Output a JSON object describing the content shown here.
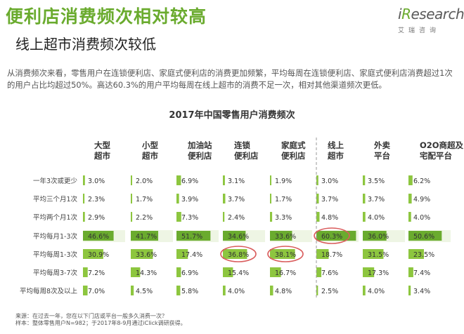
{
  "header": {
    "title": "便利店消费频次相对较高",
    "subtitle": "线上超市消费频次较低",
    "logo_text": "iResearch",
    "logo_sub": "艾瑞咨询",
    "description": "从消费频次来看，零售用户在连锁便利店、家庭式便利店的消费更加频繁，平均每周在连锁便利店、家庭式便利店消费超过1次的用户占比均超过50%。高达60.3%的用户平均每周在线上超市的消费不足一次，相对其他渠道频次更低。"
  },
  "footnote": {
    "line1": "来源：在过去一年，您在以下门店或平台一般多久消费一次？",
    "line2": "样本：整体零售用户N=982；于2017年8-9月通过iClick调研获得。"
  },
  "colors": {
    "accent": "#6aab2e",
    "bar": "#8dc63f",
    "highlight_bar": "#6aab2e",
    "circle": "#d95c5c",
    "divider": "#999999"
  },
  "chart_data": {
    "type": "table",
    "title": "2017年中国零售用户消费频次",
    "columns": [
      [
        "大型",
        "超市"
      ],
      [
        "小型",
        "超市"
      ],
      [
        "加油站",
        "便利店"
      ],
      [
        "连锁",
        "便利店"
      ],
      [
        "家庭式",
        "便利店"
      ],
      [
        "线上",
        "超市"
      ],
      [
        "外卖",
        "平台"
      ],
      [
        "O2O商超及",
        "宅配平台"
      ]
    ],
    "rows": [
      "一年3次或更少",
      "平均三个月1次",
      "平均两个月1次",
      "平均每月1-3次",
      "平均每周1-3次",
      "平均每周3-7次",
      "平均每周8次及以上"
    ],
    "values": [
      [
        3.0,
        2.0,
        6.9,
        3.1,
        1.9,
        3.0,
        3.5,
        6.2
      ],
      [
        2.3,
        1.7,
        3.9,
        3.7,
        1.7,
        3.7,
        3.7,
        4.9
      ],
      [
        2.9,
        2.2,
        7.3,
        2.4,
        3.3,
        4.8,
        4.0,
        4.0
      ],
      [
        46.6,
        41.7,
        51.7,
        34.6,
        33.6,
        60.3,
        36.0,
        50.6
      ],
      [
        30.9,
        33.6,
        17.4,
        36.8,
        38.1,
        18.7,
        31.5,
        23.5
      ],
      [
        7.2,
        14.3,
        6.9,
        15.4,
        16.7,
        7.6,
        17.3,
        7.4
      ],
      [
        7.0,
        4.5,
        5.8,
        4.0,
        4.8,
        2.5,
        4.0,
        3.4
      ]
    ],
    "unit": "%",
    "highlight_row": 3,
    "circled_cells": [
      [
        3,
        5
      ],
      [
        4,
        3
      ],
      [
        4,
        4
      ]
    ],
    "divider_after_column": 4
  }
}
